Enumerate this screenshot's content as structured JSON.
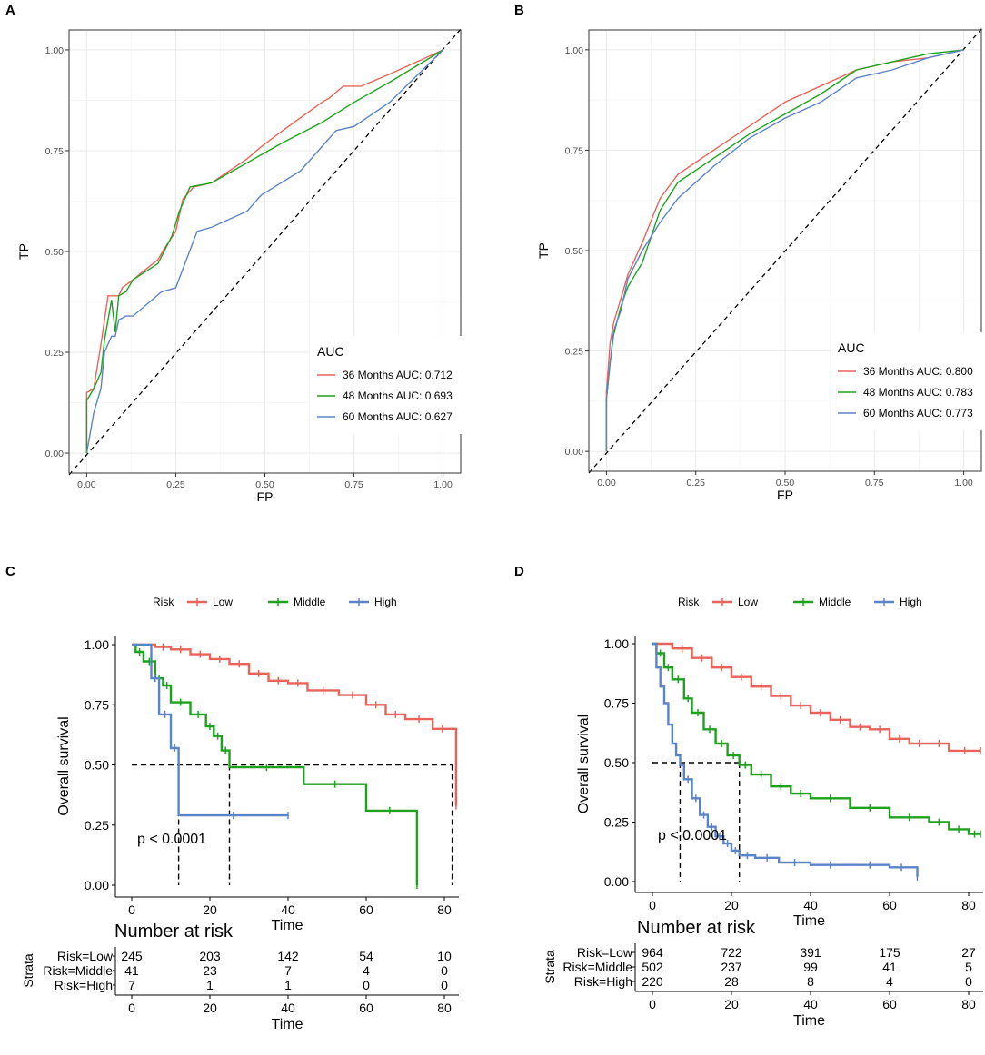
{
  "panels": {
    "A": "A",
    "B": "B",
    "C": "C",
    "D": "D"
  },
  "colors": {
    "red": "#e8645a",
    "green": "#1ea21e",
    "blue": "#5a84c8",
    "grid": "#ebebeb"
  },
  "roc_common": {
    "xlabel": "FP",
    "ylabel": "TP",
    "ticks": [
      "0.00",
      "0.25",
      "0.50",
      "0.75",
      "1.00"
    ],
    "legend_title": "AUC"
  },
  "km_common": {
    "ylabel": "Overall survival",
    "xlabel": "Time",
    "legend_title": "Risk",
    "legend_labels": [
      "Low",
      "Middle",
      "High"
    ],
    "yticks": [
      "0.00",
      "0.25",
      "0.50",
      "0.75",
      "1.00"
    ],
    "xticks": [
      "0",
      "20",
      "40",
      "60",
      "80"
    ],
    "risk_title": "Number at risk",
    "strata_label": "Strata",
    "strata_names": [
      "Risk=Low",
      "Risk=Middle",
      "Risk=High"
    ],
    "pvalue": "p < 0.0001"
  },
  "chart_data": [
    {
      "id": "A",
      "type": "line",
      "title": "",
      "xlabel": "FP",
      "ylabel": "TP",
      "xlim": [
        0,
        1
      ],
      "ylim": [
        0,
        1
      ],
      "legend_position": "bottom-right",
      "series": [
        {
          "name": "36 Months AUC: 0.712",
          "color": "red",
          "points": [
            [
              0,
              0
            ],
            [
              0,
              0.15
            ],
            [
              0.02,
              0.16
            ],
            [
              0.04,
              0.27
            ],
            [
              0.06,
              0.39
            ],
            [
              0.09,
              0.39
            ],
            [
              0.1,
              0.41
            ],
            [
              0.13,
              0.43
            ],
            [
              0.2,
              0.48
            ],
            [
              0.22,
              0.51
            ],
            [
              0.25,
              0.55
            ],
            [
              0.27,
              0.63
            ],
            [
              0.3,
              0.66
            ],
            [
              0.35,
              0.67
            ],
            [
              0.45,
              0.73
            ],
            [
              0.49,
              0.76
            ],
            [
              0.55,
              0.8
            ],
            [
              0.66,
              0.87
            ],
            [
              0.68,
              0.88
            ],
            [
              0.72,
              0.91
            ],
            [
              0.77,
              0.91
            ],
            [
              0.85,
              0.94
            ],
            [
              1,
              1
            ]
          ]
        },
        {
          "name": "48 Months AUC: 0.693",
          "color": "green",
          "points": [
            [
              0,
              0
            ],
            [
              0,
              0.13
            ],
            [
              0.02,
              0.16
            ],
            [
              0.04,
              0.2
            ],
            [
              0.05,
              0.28
            ],
            [
              0.07,
              0.38
            ],
            [
              0.08,
              0.3
            ],
            [
              0.09,
              0.39
            ],
            [
              0.11,
              0.4
            ],
            [
              0.13,
              0.43
            ],
            [
              0.2,
              0.47
            ],
            [
              0.24,
              0.54
            ],
            [
              0.26,
              0.6
            ],
            [
              0.29,
              0.66
            ],
            [
              0.35,
              0.67
            ],
            [
              0.45,
              0.72
            ],
            [
              0.49,
              0.74
            ],
            [
              0.55,
              0.77
            ],
            [
              0.66,
              0.82
            ],
            [
              0.75,
              0.87
            ],
            [
              0.85,
              0.92
            ],
            [
              1,
              1
            ]
          ]
        },
        {
          "name": "60 Months AUC: 0.627",
          "color": "blue",
          "points": [
            [
              0,
              0
            ],
            [
              0.02,
              0.1
            ],
            [
              0.04,
              0.16
            ],
            [
              0.05,
              0.25
            ],
            [
              0.07,
              0.29
            ],
            [
              0.08,
              0.29
            ],
            [
              0.09,
              0.33
            ],
            [
              0.11,
              0.34
            ],
            [
              0.13,
              0.34
            ],
            [
              0.21,
              0.4
            ],
            [
              0.25,
              0.41
            ],
            [
              0.28,
              0.48
            ],
            [
              0.31,
              0.55
            ],
            [
              0.35,
              0.56
            ],
            [
              0.45,
              0.6
            ],
            [
              0.49,
              0.64
            ],
            [
              0.6,
              0.7
            ],
            [
              0.7,
              0.8
            ],
            [
              0.75,
              0.81
            ],
            [
              0.85,
              0.87
            ],
            [
              1,
              1
            ]
          ]
        }
      ]
    },
    {
      "id": "B",
      "type": "line",
      "title": "",
      "xlabel": "FP",
      "ylabel": "TP",
      "xlim": [
        0,
        1
      ],
      "ylim": [
        0,
        1
      ],
      "legend_position": "bottom-right",
      "series": [
        {
          "name": "36 Months AUC: 0.800",
          "color": "red",
          "points": [
            [
              0,
              0
            ],
            [
              0,
              0.15
            ],
            [
              0.01,
              0.27
            ],
            [
              0.02,
              0.32
            ],
            [
              0.04,
              0.38
            ],
            [
              0.06,
              0.44
            ],
            [
              0.1,
              0.52
            ],
            [
              0.15,
              0.63
            ],
            [
              0.2,
              0.69
            ],
            [
              0.3,
              0.75
            ],
            [
              0.4,
              0.81
            ],
            [
              0.5,
              0.87
            ],
            [
              0.6,
              0.91
            ],
            [
              0.7,
              0.95
            ],
            [
              0.8,
              0.97
            ],
            [
              0.9,
              0.98
            ],
            [
              1,
              1
            ]
          ]
        },
        {
          "name": "48 Months AUC: 0.783",
          "color": "green",
          "points": [
            [
              0,
              0
            ],
            [
              0,
              0.13
            ],
            [
              0.01,
              0.22
            ],
            [
              0.02,
              0.29
            ],
            [
              0.04,
              0.36
            ],
            [
              0.06,
              0.41
            ],
            [
              0.1,
              0.47
            ],
            [
              0.15,
              0.6
            ],
            [
              0.2,
              0.67
            ],
            [
              0.3,
              0.73
            ],
            [
              0.4,
              0.79
            ],
            [
              0.5,
              0.84
            ],
            [
              0.6,
              0.89
            ],
            [
              0.7,
              0.95
            ],
            [
              0.8,
              0.97
            ],
            [
              0.9,
              0.99
            ],
            [
              1,
              1
            ]
          ]
        },
        {
          "name": "60 Months AUC: 0.773",
          "color": "blue",
          "points": [
            [
              0,
              0
            ],
            [
              0,
              0.13
            ],
            [
              0.01,
              0.22
            ],
            [
              0.02,
              0.3
            ],
            [
              0.04,
              0.35
            ],
            [
              0.06,
              0.43
            ],
            [
              0.1,
              0.5
            ],
            [
              0.15,
              0.57
            ],
            [
              0.2,
              0.63
            ],
            [
              0.3,
              0.71
            ],
            [
              0.4,
              0.78
            ],
            [
              0.5,
              0.83
            ],
            [
              0.6,
              0.87
            ],
            [
              0.7,
              0.93
            ],
            [
              0.8,
              0.95
            ],
            [
              0.9,
              0.98
            ],
            [
              1,
              1
            ]
          ]
        }
      ]
    },
    {
      "id": "C",
      "type": "line",
      "step": true,
      "xlabel": "Time",
      "ylabel": "Overall survival",
      "xlim": [
        0,
        83
      ],
      "ylim": [
        0,
        1
      ],
      "median_line": 0.5,
      "median_times": [
        12,
        25,
        82
      ],
      "pvalue": "p < 0.0001",
      "series": [
        {
          "name": "Low",
          "color": "red",
          "points": [
            [
              0,
              1
            ],
            [
              6,
              0.99
            ],
            [
              10,
              0.98
            ],
            [
              15,
              0.96
            ],
            [
              20,
              0.94
            ],
            [
              25,
              0.92
            ],
            [
              30,
              0.88
            ],
            [
              35,
              0.85
            ],
            [
              40,
              0.84
            ],
            [
              45,
              0.81
            ],
            [
              53,
              0.79
            ],
            [
              60,
              0.75
            ],
            [
              65,
              0.71
            ],
            [
              70,
              0.69
            ],
            [
              77,
              0.65
            ],
            [
              82,
              0.65
            ],
            [
              83,
              0.33
            ]
          ]
        },
        {
          "name": "Middle",
          "color": "green",
          "points": [
            [
              0,
              1
            ],
            [
              1,
              0.97
            ],
            [
              3,
              0.93
            ],
            [
              6,
              0.86
            ],
            [
              8,
              0.83
            ],
            [
              10,
              0.76
            ],
            [
              15,
              0.71
            ],
            [
              19,
              0.66
            ],
            [
              21,
              0.62
            ],
            [
              23,
              0.56
            ],
            [
              25,
              0.49
            ],
            [
              44,
              0.42
            ],
            [
              60,
              0.31
            ],
            [
              72,
              0.31
            ],
            [
              73,
              0.0
            ]
          ]
        },
        {
          "name": "High",
          "color": "blue",
          "points": [
            [
              0,
              1
            ],
            [
              5,
              0.86
            ],
            [
              7,
              0.71
            ],
            [
              10,
              0.57
            ],
            [
              12,
              0.29
            ],
            [
              40,
              0.29
            ]
          ]
        }
      ],
      "risk_table": {
        "times": [
          0,
          20,
          40,
          60,
          80
        ],
        "rows": [
          [
            245,
            203,
            142,
            54,
            10
          ],
          [
            41,
            23,
            7,
            4,
            0
          ],
          [
            7,
            1,
            1,
            0,
            0
          ]
        ]
      }
    },
    {
      "id": "D",
      "type": "line",
      "step": true,
      "xlabel": "Time",
      "ylabel": "Overall survival",
      "xlim": [
        0,
        83
      ],
      "ylim": [
        0,
        1
      ],
      "median_line": 0.5,
      "median_times": [
        7,
        22
      ],
      "pvalue": "p < 0.0001",
      "series": [
        {
          "name": "Low",
          "color": "red",
          "points": [
            [
              0,
              1
            ],
            [
              5,
              0.98
            ],
            [
              10,
              0.94
            ],
            [
              15,
              0.9
            ],
            [
              20,
              0.86
            ],
            [
              25,
              0.82
            ],
            [
              30,
              0.78
            ],
            [
              35,
              0.74
            ],
            [
              40,
              0.71
            ],
            [
              45,
              0.68
            ],
            [
              50,
              0.65
            ],
            [
              55,
              0.64
            ],
            [
              60,
              0.6
            ],
            [
              65,
              0.58
            ],
            [
              70,
              0.58
            ],
            [
              75,
              0.55
            ],
            [
              83,
              0.55
            ]
          ]
        },
        {
          "name": "Middle",
          "color": "green",
          "points": [
            [
              0,
              1
            ],
            [
              1,
              0.96
            ],
            [
              3,
              0.9
            ],
            [
              5,
              0.85
            ],
            [
              8,
              0.77
            ],
            [
              10,
              0.71
            ],
            [
              13,
              0.64
            ],
            [
              16,
              0.58
            ],
            [
              19,
              0.53
            ],
            [
              22,
              0.49
            ],
            [
              25,
              0.45
            ],
            [
              30,
              0.4
            ],
            [
              35,
              0.37
            ],
            [
              40,
              0.35
            ],
            [
              50,
              0.31
            ],
            [
              60,
              0.27
            ],
            [
              70,
              0.25
            ],
            [
              75,
              0.22
            ],
            [
              80,
              0.2
            ],
            [
              83,
              0.2
            ]
          ]
        },
        {
          "name": "High",
          "color": "blue",
          "points": [
            [
              0,
              1
            ],
            [
              1,
              0.9
            ],
            [
              2,
              0.82
            ],
            [
              3,
              0.75
            ],
            [
              4,
              0.66
            ],
            [
              5,
              0.58
            ],
            [
              6,
              0.53
            ],
            [
              7,
              0.49
            ],
            [
              8,
              0.43
            ],
            [
              10,
              0.35
            ],
            [
              12,
              0.28
            ],
            [
              14,
              0.23
            ],
            [
              16,
              0.19
            ],
            [
              18,
              0.16
            ],
            [
              20,
              0.13
            ],
            [
              22,
              0.11
            ],
            [
              26,
              0.1
            ],
            [
              32,
              0.08
            ],
            [
              40,
              0.07
            ],
            [
              50,
              0.07
            ],
            [
              60,
              0.06
            ],
            [
              66,
              0.06
            ],
            [
              67,
              0.02
            ]
          ]
        }
      ],
      "risk_table": {
        "times": [
          0,
          20,
          40,
          60,
          80
        ],
        "rows": [
          [
            964,
            722,
            391,
            175,
            27
          ],
          [
            502,
            237,
            99,
            41,
            5
          ],
          [
            220,
            28,
            8,
            4,
            0
          ]
        ]
      }
    }
  ]
}
